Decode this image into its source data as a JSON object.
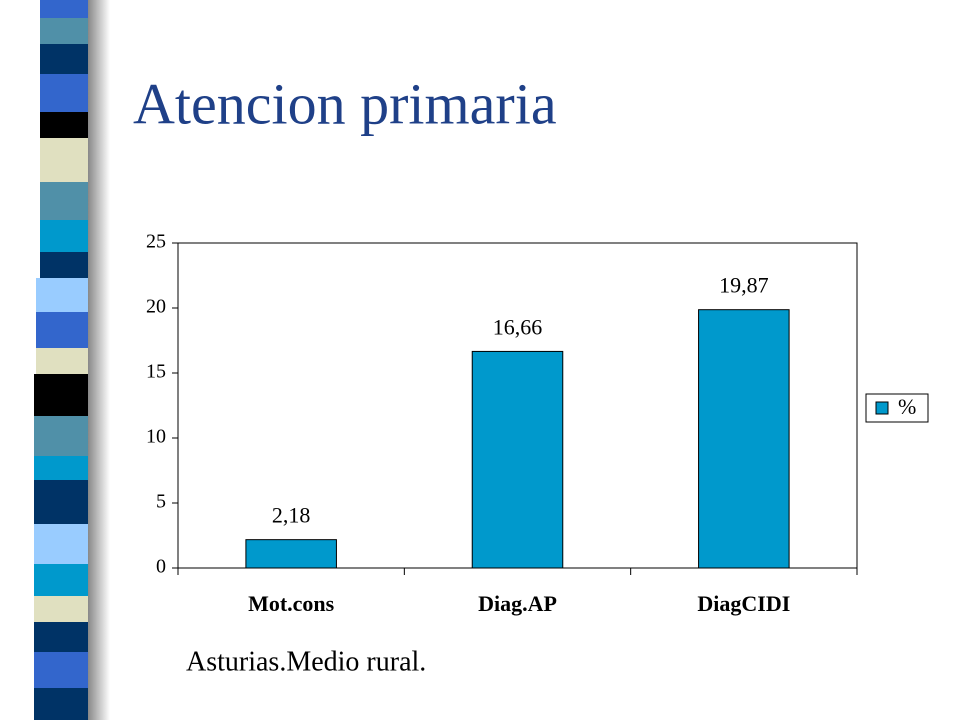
{
  "chart_data": {
    "type": "bar",
    "title": "Atencion primaria",
    "caption": "Asturias.Medio rural.",
    "categories": [
      "Mot.cons",
      "Diag.AP",
      "DiagCIDI"
    ],
    "series": [
      {
        "name": "%",
        "color": "#0099cc",
        "values": [
          2.18,
          16.66,
          19.87
        ],
        "value_labels": [
          "2,18",
          "16,66",
          "19,87"
        ]
      }
    ],
    "ylim": [
      0,
      25
    ],
    "yticks": [
      0,
      5,
      10,
      15,
      20,
      25
    ],
    "legend": "right"
  }
}
